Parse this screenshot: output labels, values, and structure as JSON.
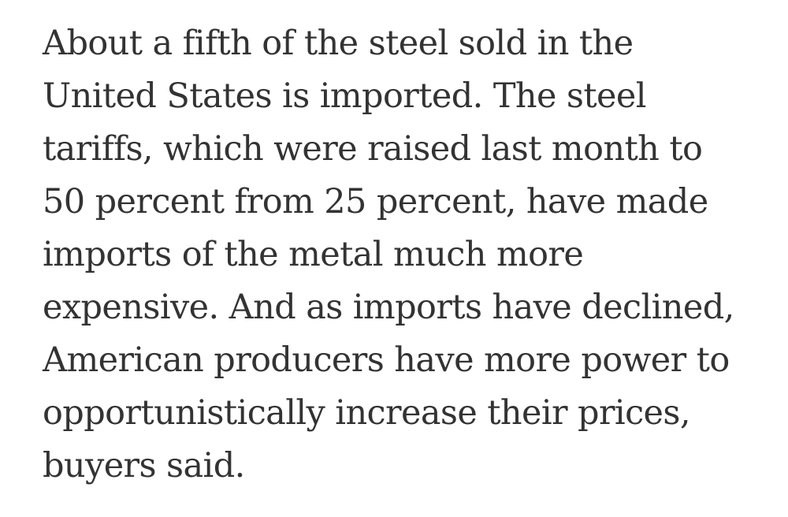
{
  "article": {
    "paragraph_lines": [
      "About a fifth of the steel sold in the",
      "United States is imported. The steel",
      "tariffs, which were raised last month to",
      "50 percent from 25 percent, have made",
      "imports of the metal much more",
      "expensive. And as imports have declined,",
      "American producers have more power to",
      "opportunistically increase their prices,",
      "buyers said."
    ]
  },
  "colors": {
    "text": "#333333",
    "background": "#ffffff"
  }
}
